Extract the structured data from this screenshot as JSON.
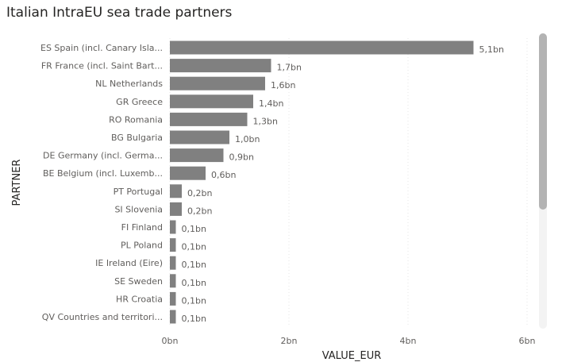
{
  "title": "Italian IntraEU sea trade partners",
  "chart_data": {
    "type": "bar",
    "orientation": "horizontal",
    "categories": [
      "ES Spain (incl. Canary Isla...",
      "FR France (incl. Saint Bart...",
      "NL Netherlands",
      "GR Greece",
      "RO Romania",
      "BG Bulgaria",
      "DE Germany (incl. Germa...",
      "BE Belgium (incl. Luxemb...",
      "PT Portugal",
      "SI Slovenia",
      "FI Finland",
      "PL Poland",
      "IE Ireland (Eire)",
      "SE Sweden",
      "HR Croatia",
      "QV Countries and territori..."
    ],
    "values": [
      5.1,
      1.7,
      1.6,
      1.4,
      1.3,
      1.0,
      0.9,
      0.6,
      0.2,
      0.2,
      0.1,
      0.1,
      0.1,
      0.1,
      0.1,
      0.1
    ],
    "data_labels": [
      "5,1bn",
      "1,7bn",
      "1,6bn",
      "1,4bn",
      "1,3bn",
      "1,0bn",
      "0,9bn",
      "0,6bn",
      "0,2bn",
      "0,2bn",
      "0,1bn",
      "0,1bn",
      "0,1bn",
      "0,1bn",
      "0,1bn",
      "0,1bn"
    ],
    "xlabel": "VALUE_EUR",
    "ylabel": "PARTNER",
    "xlim": [
      0,
      6
    ],
    "xticks": [
      0,
      2,
      4,
      6
    ],
    "xtick_labels": [
      "0bn",
      "2bn",
      "4bn",
      "6bn"
    ],
    "grid": true,
    "bar_color": "#808080"
  }
}
